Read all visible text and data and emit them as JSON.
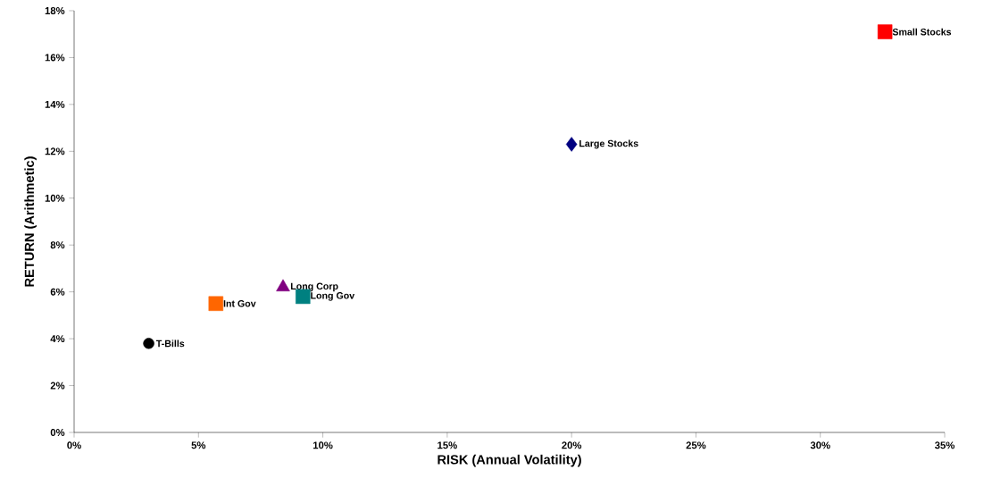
{
  "chart_data": {
    "type": "scatter",
    "xlabel": "RISK (Annual Volatility)",
    "ylabel": "RETURN (Arithmetic)",
    "xlim": [
      0,
      35
    ],
    "ylim": [
      0,
      18
    ],
    "xticks": [
      {
        "value": 0,
        "label": "0%"
      },
      {
        "value": 5,
        "label": "5%"
      },
      {
        "value": 10,
        "label": "10%"
      },
      {
        "value": 15,
        "label": "15%"
      },
      {
        "value": 20,
        "label": "20%"
      },
      {
        "value": 25,
        "label": "25%"
      },
      {
        "value": 30,
        "label": "30%"
      },
      {
        "value": 35,
        "label": "35%"
      }
    ],
    "yticks": [
      {
        "value": 0,
        "label": "0%"
      },
      {
        "value": 2,
        "label": "2%"
      },
      {
        "value": 4,
        "label": "4%"
      },
      {
        "value": 6,
        "label": "6%"
      },
      {
        "value": 8,
        "label": "8%"
      },
      {
        "value": 10,
        "label": "10%"
      },
      {
        "value": 12,
        "label": "12%"
      },
      {
        "value": 14,
        "label": "14%"
      },
      {
        "value": 16,
        "label": "16%"
      },
      {
        "value": 18,
        "label": "18%"
      }
    ],
    "grid": false,
    "series": [
      {
        "name": "T-Bills",
        "color": "#000000",
        "marker": "circle",
        "x": [
          3.0
        ],
        "values": [
          3.8
        ]
      },
      {
        "name": "Int Gov",
        "color": "#ff6600",
        "marker": "square",
        "x": [
          5.7
        ],
        "values": [
          5.5
        ]
      },
      {
        "name": "Long Corp",
        "color": "#800080",
        "marker": "triangle",
        "x": [
          8.4
        ],
        "values": [
          6.2
        ]
      },
      {
        "name": "Long Gov",
        "color": "#008080",
        "marker": "square",
        "x": [
          9.2
        ],
        "values": [
          5.8
        ]
      },
      {
        "name": "Large Stocks",
        "color": "#000080",
        "marker": "diamond",
        "x": [
          20.0
        ],
        "values": [
          12.3
        ]
      },
      {
        "name": "Small Stocks",
        "color": "#ff0000",
        "marker": "square",
        "x": [
          32.6
        ],
        "values": [
          17.1
        ]
      }
    ]
  }
}
